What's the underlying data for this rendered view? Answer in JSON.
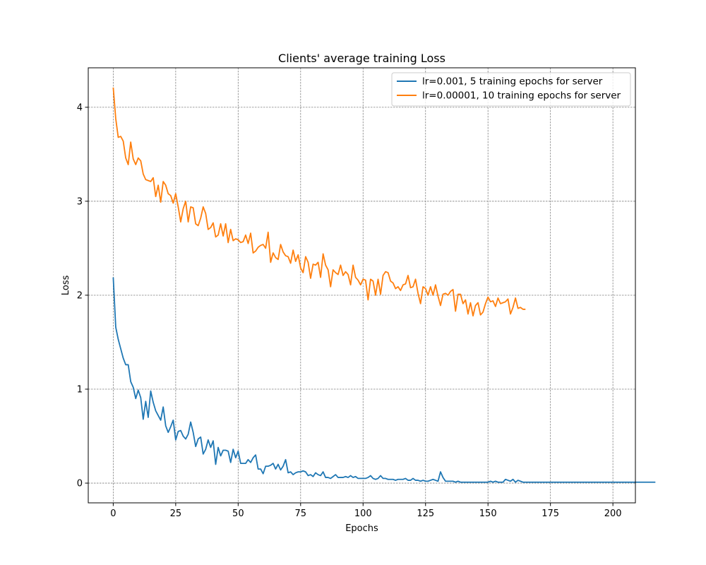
{
  "chart_data": {
    "type": "line",
    "title": "Clients' average training Loss",
    "xlabel": "Epochs",
    "ylabel": "Loss",
    "xlim": [
      -10,
      209
    ],
    "ylim": [
      -0.21,
      4.42
    ],
    "xticks": [
      0,
      25,
      50,
      75,
      100,
      125,
      150,
      175,
      200
    ],
    "yticks": [
      0,
      1,
      2,
      3,
      4
    ],
    "grid": true,
    "legend_position": "top-right",
    "series": [
      {
        "name": "lr=0.001, 5 training epochs for server",
        "color": "#1f77b4",
        "values": [
          2.19,
          1.66,
          1.53,
          1.43,
          1.33,
          1.26,
          1.26,
          1.08,
          1.02,
          0.9,
          0.99,
          0.91,
          0.68,
          0.87,
          0.7,
          0.98,
          0.86,
          0.77,
          0.72,
          0.67,
          0.81,
          0.61,
          0.54,
          0.6,
          0.67,
          0.46,
          0.55,
          0.56,
          0.5,
          0.47,
          0.52,
          0.65,
          0.54,
          0.39,
          0.47,
          0.49,
          0.31,
          0.36,
          0.46,
          0.38,
          0.45,
          0.2,
          0.38,
          0.29,
          0.35,
          0.35,
          0.34,
          0.22,
          0.36,
          0.27,
          0.34,
          0.21,
          0.21,
          0.21,
          0.25,
          0.22,
          0.27,
          0.3,
          0.15,
          0.15,
          0.1,
          0.18,
          0.18,
          0.19,
          0.21,
          0.15,
          0.2,
          0.14,
          0.18,
          0.25,
          0.11,
          0.12,
          0.09,
          0.11,
          0.12,
          0.12,
          0.13,
          0.12,
          0.08,
          0.09,
          0.07,
          0.11,
          0.09,
          0.08,
          0.12,
          0.06,
          0.06,
          0.05,
          0.07,
          0.09,
          0.06,
          0.06,
          0.06,
          0.07,
          0.06,
          0.08,
          0.06,
          0.07,
          0.05,
          0.05,
          0.05,
          0.05,
          0.06,
          0.08,
          0.05,
          0.04,
          0.05,
          0.08,
          0.05,
          0.05,
          0.04,
          0.04,
          0.04,
          0.03,
          0.04,
          0.04,
          0.04,
          0.05,
          0.03,
          0.03,
          0.05,
          0.03,
          0.03,
          0.02,
          0.03,
          0.02,
          0.02,
          0.03,
          0.04,
          0.03,
          0.02,
          0.12,
          0.06,
          0.02,
          0.02,
          0.02,
          0.02,
          0.01,
          0.02,
          0.01,
          0.01,
          0.01,
          0.01,
          0.01,
          0.01,
          0.01,
          0.01,
          0.01,
          0.01,
          0.01,
          0.01,
          0.02,
          0.01,
          0.02,
          0.01,
          0.01,
          0.01,
          0.04,
          0.03,
          0.02,
          0.04,
          0.01,
          0.03,
          0.02,
          0.01,
          0.01,
          0.01,
          0.01,
          0.01,
          0.01,
          0.01,
          0.01,
          0.01,
          0.01,
          0.01,
          0.01,
          0.01,
          0.01,
          0.01,
          0.01,
          0.01,
          0.01,
          0.01,
          0.01,
          0.01,
          0.01,
          0.01,
          0.01,
          0.01,
          0.01,
          0.01,
          0.01,
          0.01,
          0.01,
          0.01,
          0.01,
          0.01,
          0.01,
          0.01,
          0.01,
          0.01,
          0.01,
          0.01,
          0.01,
          0.01,
          0.01,
          0.01,
          0.01,
          0.01,
          0.01,
          0.01,
          0.01,
          0.01,
          0.01,
          0.01,
          0.01,
          0.01,
          0.01
        ]
      },
      {
        "name": "lr=0.00001, 10 training epochs for server",
        "color": "#ff7f0e",
        "values": [
          4.21,
          3.88,
          3.68,
          3.69,
          3.64,
          3.46,
          3.39,
          3.63,
          3.45,
          3.39,
          3.46,
          3.43,
          3.29,
          3.23,
          3.22,
          3.21,
          3.25,
          3.05,
          3.17,
          2.99,
          3.21,
          3.17,
          3.08,
          3.06,
          2.98,
          3.08,
          2.94,
          2.78,
          2.92,
          3.0,
          2.78,
          2.94,
          2.93,
          2.76,
          2.74,
          2.82,
          2.94,
          2.87,
          2.7,
          2.72,
          2.77,
          2.62,
          2.64,
          2.76,
          2.63,
          2.76,
          2.56,
          2.7,
          2.58,
          2.6,
          2.59,
          2.56,
          2.57,
          2.64,
          2.55,
          2.66,
          2.45,
          2.47,
          2.51,
          2.53,
          2.54,
          2.5,
          2.67,
          2.35,
          2.45,
          2.4,
          2.38,
          2.54,
          2.46,
          2.42,
          2.41,
          2.34,
          2.48,
          2.36,
          2.43,
          2.29,
          2.24,
          2.41,
          2.35,
          2.18,
          2.33,
          2.32,
          2.35,
          2.19,
          2.44,
          2.32,
          2.27,
          2.09,
          2.27,
          2.24,
          2.22,
          2.32,
          2.21,
          2.25,
          2.22,
          2.11,
          2.32,
          2.19,
          2.16,
          2.11,
          2.17,
          2.16,
          1.95,
          2.17,
          2.15,
          2.0,
          2.17,
          2.01,
          2.21,
          2.25,
          2.24,
          2.15,
          2.13,
          2.07,
          2.09,
          2.05,
          2.11,
          2.12,
          2.21,
          2.08,
          2.09,
          2.17,
          2.02,
          1.91,
          2.09,
          2.07,
          2.0,
          2.09,
          2.0,
          2.11,
          1.99,
          1.89,
          2.01,
          2.02,
          2.0,
          2.04,
          2.06,
          1.83,
          2.01,
          2.01,
          1.91,
          1.95,
          1.8,
          1.92,
          1.78,
          1.89,
          1.92,
          1.79,
          1.82,
          1.91,
          1.98,
          1.93,
          1.94,
          1.88,
          1.97,
          1.91,
          1.92,
          1.93,
          1.96,
          1.8,
          1.87,
          1.97,
          1.86,
          1.87,
          1.85,
          1.85
        ]
      }
    ]
  }
}
